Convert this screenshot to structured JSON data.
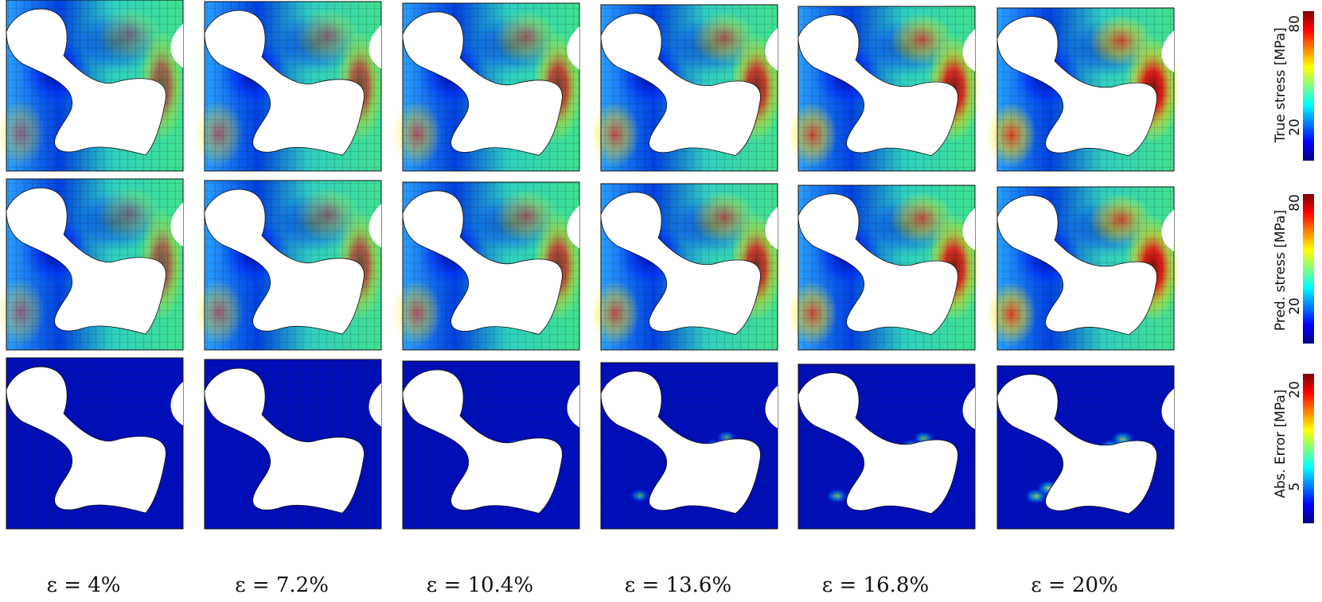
{
  "columns": [
    {
      "strain_label": "ε = 4%"
    },
    {
      "strain_label": "ε = 7.2%"
    },
    {
      "strain_label": "ε = 10.4%"
    },
    {
      "strain_label": "ε = 13.6%"
    },
    {
      "strain_label": "ε = 16.8%"
    },
    {
      "strain_label": "ε = 20%"
    }
  ],
  "rows": [
    {
      "field": "true-stress",
      "colorbar": {
        "title": "True stress [MPa]",
        "ticks": [
          "20",
          "80"
        ],
        "colormap": "jet"
      }
    },
    {
      "field": "pred-stress",
      "colorbar": {
        "title": "Pred. stress [MPa]",
        "ticks": [
          "20",
          "80"
        ],
        "colormap": "jet"
      }
    },
    {
      "field": "abs-error",
      "colorbar": {
        "title": "Abs. Error [MPa]",
        "ticks": [
          "5",
          "20"
        ],
        "colormap": "jet"
      }
    }
  ],
  "colors": {
    "mesh_line": "#111111",
    "jet": [
      "#00007f",
      "#0000ff",
      "#007fff",
      "#00ffff",
      "#7fff7f",
      "#ffff00",
      "#ff7f00",
      "#ff0000",
      "#7f0000"
    ]
  }
}
